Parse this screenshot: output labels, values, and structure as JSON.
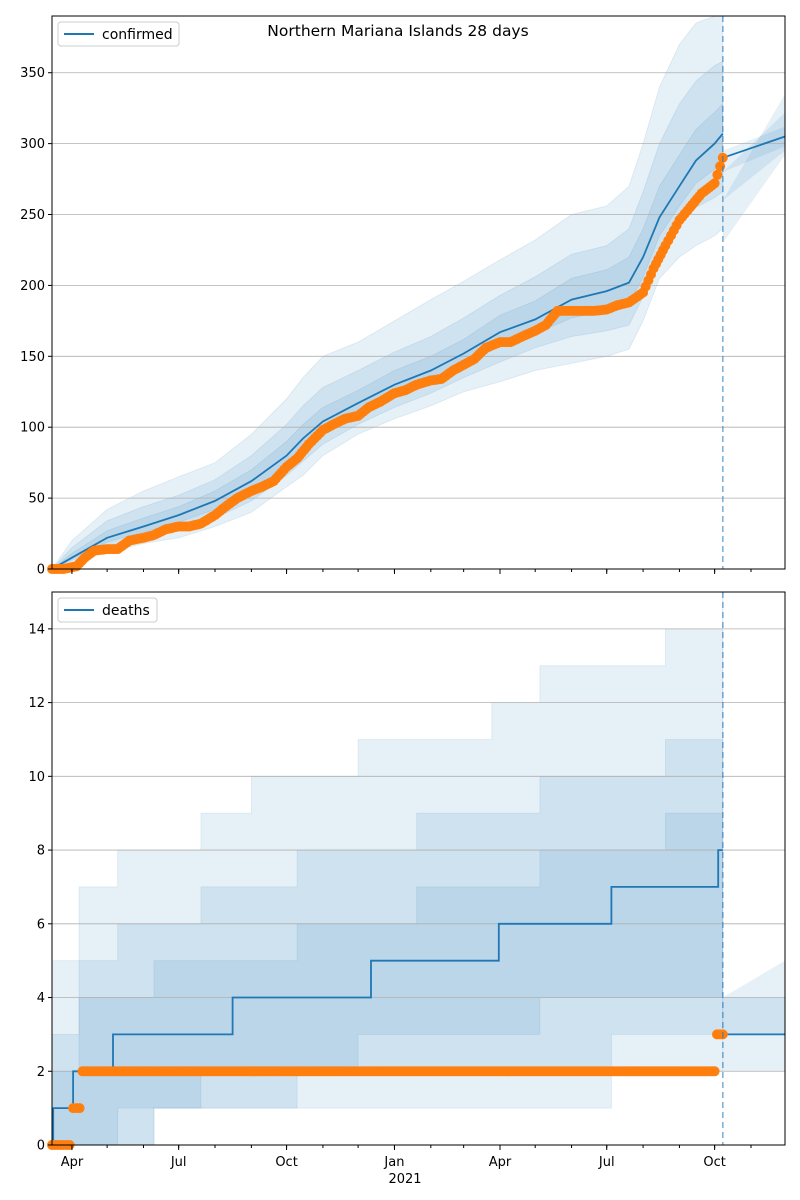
{
  "title": "Northern Mariana Islands 28 days",
  "colors": {
    "line": "#1f77b4",
    "observed": "#ff7f0e",
    "band": "#1f77b4",
    "grid": "#b0b0b0"
  },
  "x_axis": {
    "start": "2020-03-15",
    "end": "2021-11-30",
    "ticks": [
      {
        "date": "2020-04-01",
        "label": "Apr"
      },
      {
        "date": "2020-07-01",
        "label": "Jul"
      },
      {
        "date": "2020-10-01",
        "label": "Oct"
      },
      {
        "date": "2021-01-01",
        "label": "Jan"
      },
      {
        "date": "2021-04-01",
        "label": "Apr"
      },
      {
        "date": "2021-07-01",
        "label": "Jul"
      },
      {
        "date": "2021-10-01",
        "label": "Oct"
      }
    ],
    "year_label": "2021",
    "forecast_date": "2021-10-08"
  },
  "chart_data": [
    {
      "type": "line",
      "legend": "confirmed",
      "legend_position": "top-left",
      "grid": "horizontal",
      "ylim": [
        0,
        390
      ],
      "yticks": [
        0,
        50,
        100,
        150,
        200,
        250,
        300,
        350
      ],
      "median": {
        "x": [
          "2020-03-15",
          "2020-04-01",
          "2020-05-01",
          "2020-06-01",
          "2020-07-01",
          "2020-08-01",
          "2020-09-01",
          "2020-10-01",
          "2020-10-15",
          "2020-11-01",
          "2020-12-01",
          "2021-01-01",
          "2021-02-01",
          "2021-03-01",
          "2021-04-01",
          "2021-05-01",
          "2021-06-01",
          "2021-07-01",
          "2021-07-20",
          "2021-08-01",
          "2021-08-15",
          "2021-09-01",
          "2021-09-15",
          "2021-10-01",
          "2021-10-08"
        ],
        "y": [
          0,
          8,
          22,
          30,
          38,
          48,
          62,
          80,
          92,
          104,
          117,
          130,
          140,
          152,
          167,
          176,
          190,
          196,
          202,
          220,
          248,
          270,
          288,
          300,
          307
        ]
      },
      "forecast": {
        "x": [
          "2021-10-08",
          "2021-11-30"
        ],
        "y": [
          290,
          305
        ]
      },
      "bands": [
        {
          "lower": [
            0,
            5,
            12,
            18,
            22,
            30,
            40,
            58,
            66,
            80,
            95,
            106,
            115,
            125,
            132,
            140,
            145,
            150,
            155,
            175,
            205,
            220,
            228,
            235,
            240
          ],
          "upper": [
            0,
            20,
            42,
            55,
            65,
            75,
            95,
            120,
            135,
            150,
            160,
            175,
            190,
            203,
            218,
            232,
            250,
            256,
            270,
            300,
            340,
            370,
            385,
            390,
            390
          ]
        },
        {
          "lower": [
            0,
            6,
            16,
            22,
            28,
            36,
            48,
            66,
            76,
            88,
            102,
            114,
            124,
            135,
            146,
            156,
            164,
            168,
            172,
            192,
            222,
            242,
            255,
            262,
            266
          ],
          "upper": [
            0,
            15,
            34,
            44,
            52,
            63,
            80,
            102,
            115,
            128,
            140,
            153,
            164,
            177,
            193,
            206,
            222,
            228,
            240,
            266,
            300,
            328,
            344,
            355,
            358
          ]
        },
        {
          "lower": [
            0,
            7,
            19,
            26,
            33,
            42,
            55,
            73,
            84,
            96,
            110,
            122,
            132,
            144,
            157,
            166,
            177,
            182,
            187,
            206,
            235,
            256,
            272,
            282,
            286
          ],
          "upper": [
            0,
            11,
            27,
            36,
            44,
            55,
            70,
            90,
            102,
            114,
            126,
            140,
            150,
            162,
            179,
            189,
            205,
            211,
            220,
            240,
            270,
            292,
            310,
            322,
            328
          ]
        }
      ],
      "forecast_bands": [
        {
          "lower": [
            230,
            292
          ],
          "upper": [
            260,
            335
          ]
        },
        {
          "lower": [
            260,
            295
          ],
          "upper": [
            280,
            322
          ]
        },
        {
          "lower": [
            280,
            298
          ],
          "upper": [
            295,
            312
          ]
        }
      ],
      "observed": {
        "x": [
          "2020-03-15",
          "2020-03-25",
          "2020-04-05",
          "2020-04-12",
          "2020-04-20",
          "2020-05-01",
          "2020-05-10",
          "2020-05-20",
          "2020-06-01",
          "2020-06-10",
          "2020-06-20",
          "2020-07-01",
          "2020-07-10",
          "2020-07-20",
          "2020-08-01",
          "2020-08-10",
          "2020-08-20",
          "2020-09-01",
          "2020-09-10",
          "2020-09-20",
          "2020-10-01",
          "2020-10-10",
          "2020-10-20",
          "2020-11-01",
          "2020-11-10",
          "2020-11-20",
          "2020-12-01",
          "2020-12-10",
          "2020-12-20",
          "2021-01-01",
          "2021-01-10",
          "2021-01-20",
          "2021-02-01",
          "2021-02-10",
          "2021-02-20",
          "2021-03-01",
          "2021-03-10",
          "2021-03-20",
          "2021-04-01",
          "2021-04-10",
          "2021-04-20",
          "2021-05-01",
          "2021-05-10",
          "2021-05-20",
          "2021-06-01",
          "2021-06-10",
          "2021-06-20",
          "2021-07-01",
          "2021-07-10",
          "2021-07-20",
          "2021-08-01",
          "2021-08-10",
          "2021-08-20",
          "2021-09-01",
          "2021-09-10",
          "2021-09-20",
          "2021-10-01",
          "2021-10-08"
        ],
        "y": [
          0,
          0,
          2,
          8,
          13,
          14,
          14,
          20,
          22,
          24,
          28,
          30,
          30,
          32,
          38,
          44,
          50,
          55,
          58,
          62,
          72,
          78,
          88,
          98,
          102,
          106,
          108,
          114,
          118,
          124,
          126,
          130,
          133,
          134,
          140,
          144,
          148,
          156,
          160,
          160,
          164,
          168,
          172,
          182,
          182,
          182,
          182,
          183,
          186,
          188,
          195,
          212,
          228,
          246,
          255,
          265,
          272,
          290
        ]
      }
    },
    {
      "type": "line",
      "legend": "deaths",
      "legend_position": "top-left",
      "grid": "horizontal",
      "ylim": [
        0,
        15
      ],
      "yticks": [
        0,
        2,
        4,
        6,
        8,
        10,
        12,
        14
      ],
      "median": {
        "x": [
          "2020-03-15",
          "2020-03-16",
          "2020-03-23",
          "2020-04-02",
          "2020-05-06",
          "2020-08-16",
          "2020-12-12",
          "2021-03-31",
          "2021-07-05",
          "2021-10-04",
          "2021-10-08"
        ],
        "y": [
          0,
          1,
          1,
          2,
          3,
          4,
          5,
          6,
          7,
          8,
          8
        ]
      },
      "forecast": {
        "x": [
          "2021-10-08",
          "2021-11-30"
        ],
        "y": [
          3,
          3
        ]
      },
      "bands": [
        {
          "x": [
            "2020-03-15",
            "2020-04-07",
            "2020-05-10",
            "2020-06-10",
            "2020-07-20",
            "2020-09-01",
            "2020-10-10",
            "2020-12-01",
            "2021-01-20",
            "2021-03-25",
            "2021-05-05",
            "2021-07-05",
            "2021-08-20",
            "2021-10-08"
          ],
          "lower": [
            0,
            0,
            0,
            1,
            1,
            1,
            1,
            1,
            1,
            1,
            1,
            2,
            2,
            2
          ],
          "upper": [
            5,
            7,
            8,
            8,
            9,
            10,
            10,
            11,
            11,
            12,
            13,
            13,
            14,
            15
          ]
        },
        {
          "x": [
            "2020-03-15",
            "2020-04-07",
            "2020-05-10",
            "2020-06-10",
            "2020-07-20",
            "2020-09-01",
            "2020-10-10",
            "2020-12-01",
            "2021-01-20",
            "2021-03-25",
            "2021-05-05",
            "2021-07-05",
            "2021-08-20",
            "2021-10-08"
          ],
          "lower": [
            0,
            0,
            0,
            1,
            1,
            1,
            2,
            2,
            2,
            2,
            2,
            3,
            3,
            3
          ],
          "upper": [
            3,
            5,
            6,
            6,
            7,
            7,
            8,
            8,
            9,
            9,
            10,
            10,
            11,
            15
          ]
        },
        {
          "x": [
            "2020-03-15",
            "2020-04-07",
            "2020-05-10",
            "2020-06-10",
            "2020-07-20",
            "2020-09-01",
            "2020-10-10",
            "2020-12-01",
            "2021-01-20",
            "2021-03-25",
            "2021-05-05",
            "2021-07-05",
            "2021-08-20",
            "2021-10-08"
          ],
          "lower": [
            0,
            0,
            1,
            1,
            2,
            2,
            2,
            3,
            3,
            3,
            4,
            4,
            4,
            4
          ],
          "upper": [
            2,
            4,
            4,
            5,
            5,
            5,
            6,
            6,
            7,
            7,
            8,
            8,
            9,
            11
          ]
        }
      ],
      "forecast_bands": [
        {
          "lower": [
            2,
            2
          ],
          "upper": [
            4,
            5
          ]
        },
        {
          "lower": [
            3,
            3
          ],
          "upper": [
            4,
            4
          ]
        }
      ],
      "observed": {
        "x": [
          "2020-03-15",
          "2020-03-20",
          "2020-03-25",
          "2020-03-30",
          "2020-04-02",
          "2020-04-05",
          "2020-04-10",
          "2020-05-01",
          "2020-06-01",
          "2020-07-01",
          "2020-08-01",
          "2020-09-01",
          "2020-10-01",
          "2020-11-01",
          "2020-12-01",
          "2021-01-01",
          "2021-02-01",
          "2021-03-01",
          "2021-04-01",
          "2021-05-01",
          "2021-06-01",
          "2021-07-01",
          "2021-08-01",
          "2021-09-01",
          "2021-09-29",
          "2021-10-03",
          "2021-10-08"
        ],
        "y": [
          0,
          0,
          0,
          0,
          1,
          1,
          2,
          2,
          2,
          2,
          2,
          2,
          2,
          2,
          2,
          2,
          2,
          2,
          2,
          2,
          2,
          2,
          2,
          2,
          2,
          3,
          3
        ]
      }
    }
  ]
}
